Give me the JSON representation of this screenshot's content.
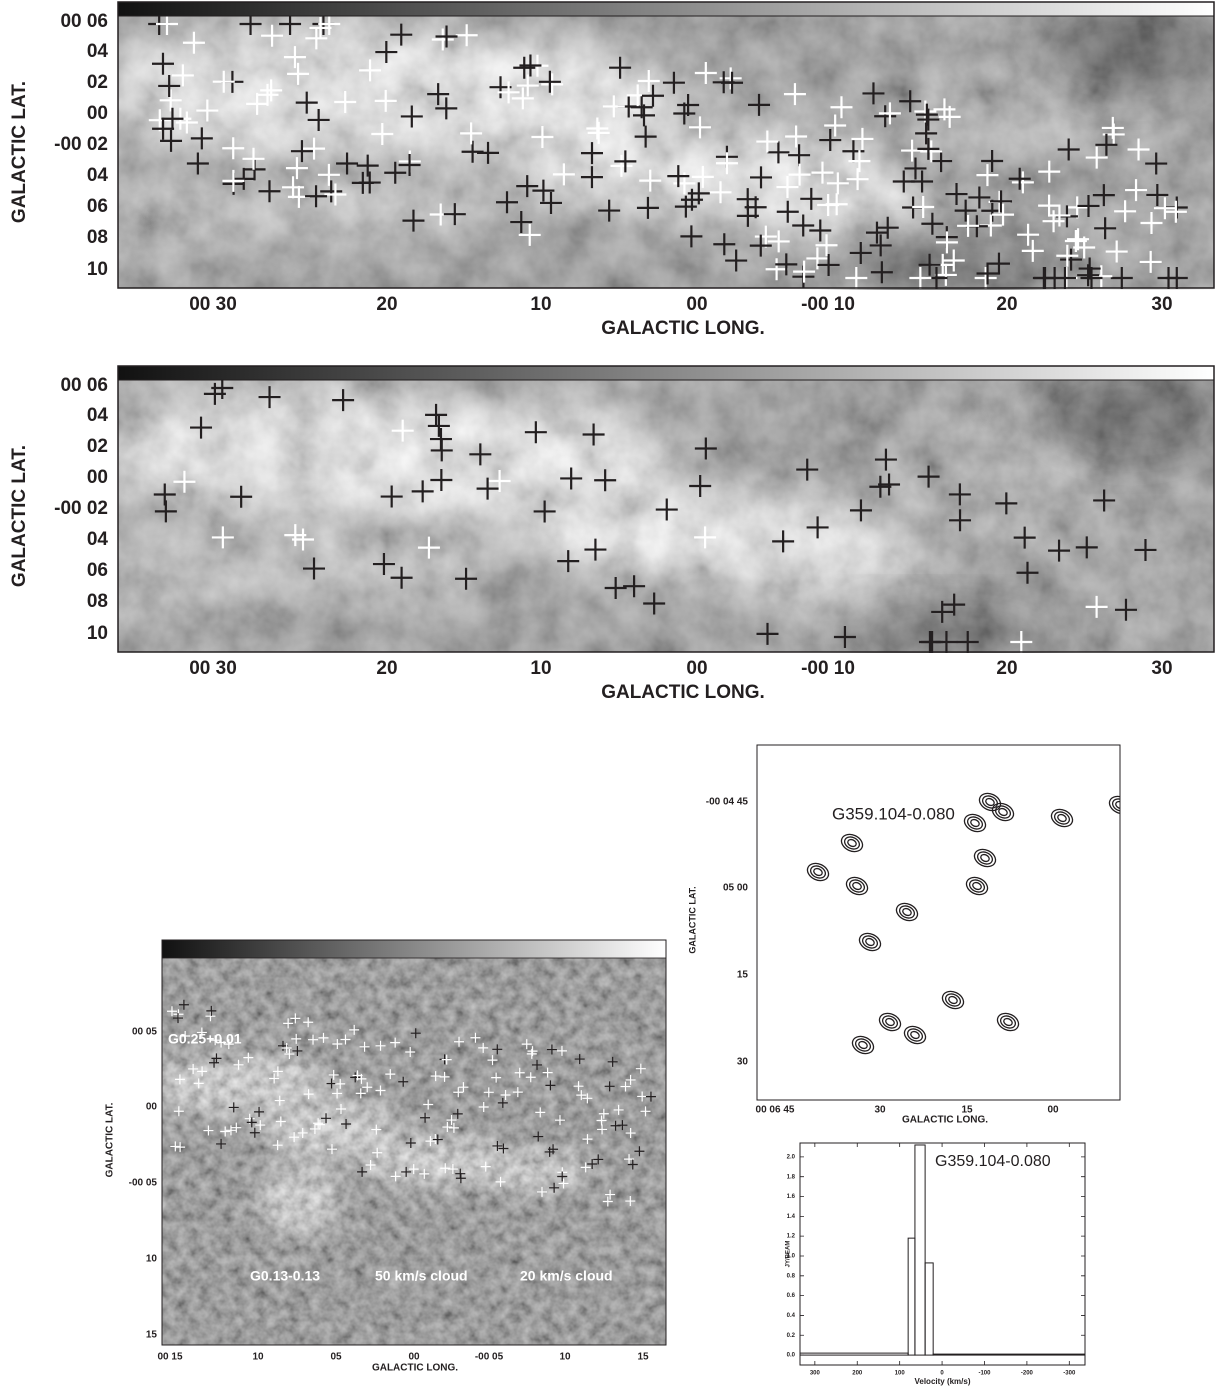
{
  "panels": [
    {
      "y_label": "GALACTIC LAT.",
      "x_label": "GALACTIC LONG.",
      "yticks": [
        "00 06",
        "04",
        "02",
        "00",
        "-00 02",
        "04",
        "06",
        "08",
        "10"
      ],
      "xticks": [
        "00 30",
        "20",
        "10",
        "00",
        "-00 10",
        "20",
        "30"
      ]
    },
    {
      "y_label": "GALACTIC LAT.",
      "x_label": "GALACTIC LONG.",
      "yticks": [
        "00 06",
        "04",
        "02",
        "00",
        "-00 02",
        "04",
        "06",
        "08",
        "10"
      ],
      "xticks": [
        "00 30",
        "20",
        "10",
        "00",
        "-00 10",
        "20",
        "30"
      ]
    },
    {
      "y_label": "GALACTIC LAT.",
      "x_label": "GALACTIC LONG.",
      "yticks": [
        "00 05",
        "00",
        "-00 05",
        "10",
        "15"
      ],
      "xticks": [
        "00 15",
        "10",
        "05",
        "00",
        "-00 05",
        "10",
        "15"
      ],
      "annotations": [
        "G0.25+0.01",
        "G0.13-0.13",
        "50 km/s cloud",
        "20 km/s cloud"
      ]
    },
    {
      "y_label": "GALACTIC LAT.",
      "x_label": "GALACTIC LONG.",
      "yticks": [
        "-00 04 45",
        "05 00",
        "15",
        "30"
      ],
      "xticks": [
        "00 06 45",
        "30",
        "15",
        "00"
      ],
      "annotations": [
        "G359.104-0.080"
      ]
    }
  ],
  "chart_data": {
    "type": "histogram",
    "xlabel": "Velocity (km/s)",
    "ylabel": "JY/BEAM",
    "annotation": "G359.104-0.080",
    "bins": [
      335,
      80,
      64,
      40,
      21,
      -337
    ],
    "values": [
      0.02,
      1.18,
      2.12,
      0.93,
      0.01
    ],
    "xlim": [
      335,
      -337
    ],
    "ylim": [
      -0.1,
      2.14
    ],
    "xticks": [
      300,
      200,
      100,
      0,
      -100,
      -200,
      -300
    ],
    "yticks": [
      {
        "value": 0,
        "label": "0.0"
      },
      0.2,
      0.4,
      0.6,
      0.8,
      {
        "value": 1,
        "label": "1.0"
      },
      1.2,
      1.4,
      1.6,
      1.8,
      {
        "value": 2,
        "label": "2.0"
      }
    ]
  }
}
